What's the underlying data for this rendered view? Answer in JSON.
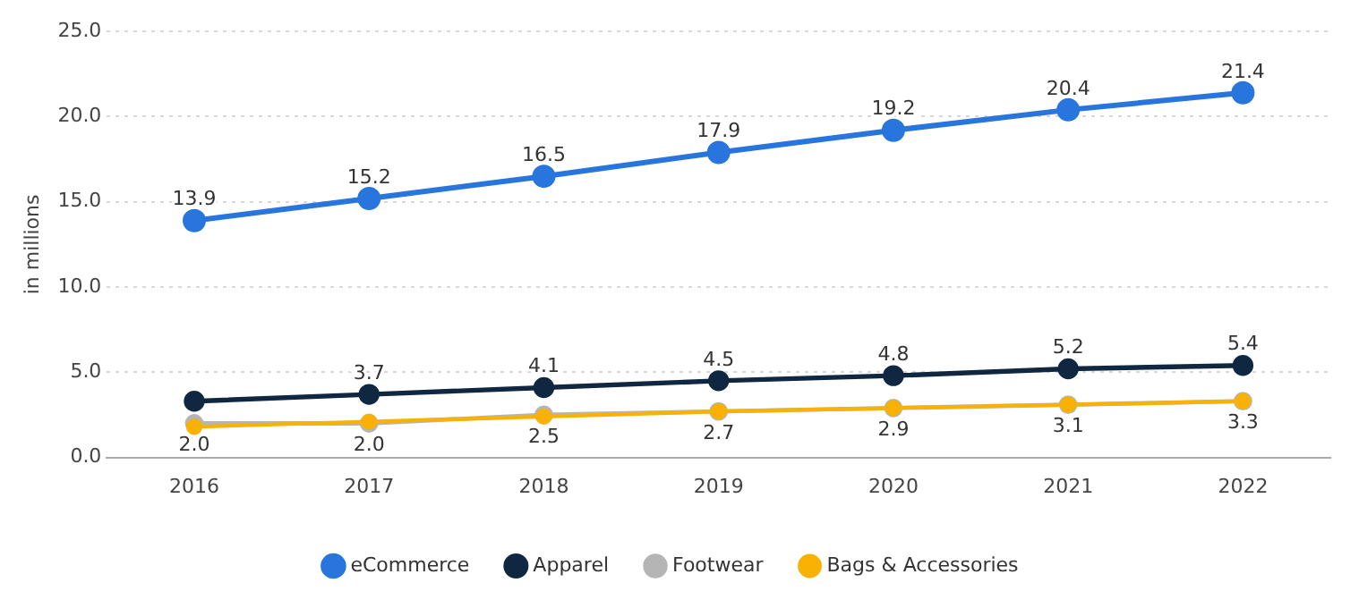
{
  "chart_data": {
    "type": "line",
    "ylabel": "in millions",
    "categories": [
      "2016",
      "2017",
      "2018",
      "2019",
      "2020",
      "2021",
      "2022"
    ],
    "series": [
      {
        "name": "eCommerce",
        "color": "#2876dd",
        "values": [
          13.9,
          15.2,
          16.5,
          17.9,
          19.2,
          20.4,
          21.4
        ],
        "value_labels": [
          "13.9",
          "15.2",
          "16.5",
          "17.9",
          "19.2",
          "20.4",
          "21.4"
        ]
      },
      {
        "name": "Apparel",
        "color": "#0f2741",
        "values": [
          3.3,
          3.7,
          4.1,
          4.5,
          4.8,
          5.2,
          5.4
        ],
        "value_labels": [
          null,
          "3.7",
          "4.1",
          "4.5",
          "4.8",
          "5.2",
          "5.4"
        ]
      },
      {
        "name": "Footwear",
        "color": "#b5b5b5",
        "values": [
          2.0,
          2.0,
          2.5,
          2.7,
          2.9,
          3.1,
          3.3
        ],
        "value_labels": [
          "2.0",
          "2.0",
          "2.5",
          "2.7",
          "2.9",
          "3.1",
          "3.3"
        ]
      },
      {
        "name": "Bags & Accessories",
        "color": "#f9b104",
        "values": [
          1.8,
          2.1,
          2.4,
          2.7,
          2.9,
          3.1,
          3.3
        ]
      }
    ],
    "ylim": [
      0,
      25
    ],
    "yticks": [
      {
        "value": 0,
        "label": "0.0"
      },
      {
        "value": 5,
        "label": "5.0"
      },
      {
        "value": 10,
        "label": "10.0"
      },
      {
        "value": 15,
        "label": "15.0"
      },
      {
        "value": 20,
        "label": "20.0"
      },
      {
        "value": 25,
        "label": "25.0"
      }
    ],
    "grid": "y",
    "legend": "bottom",
    "marker": "circle",
    "line_style": "solid"
  }
}
